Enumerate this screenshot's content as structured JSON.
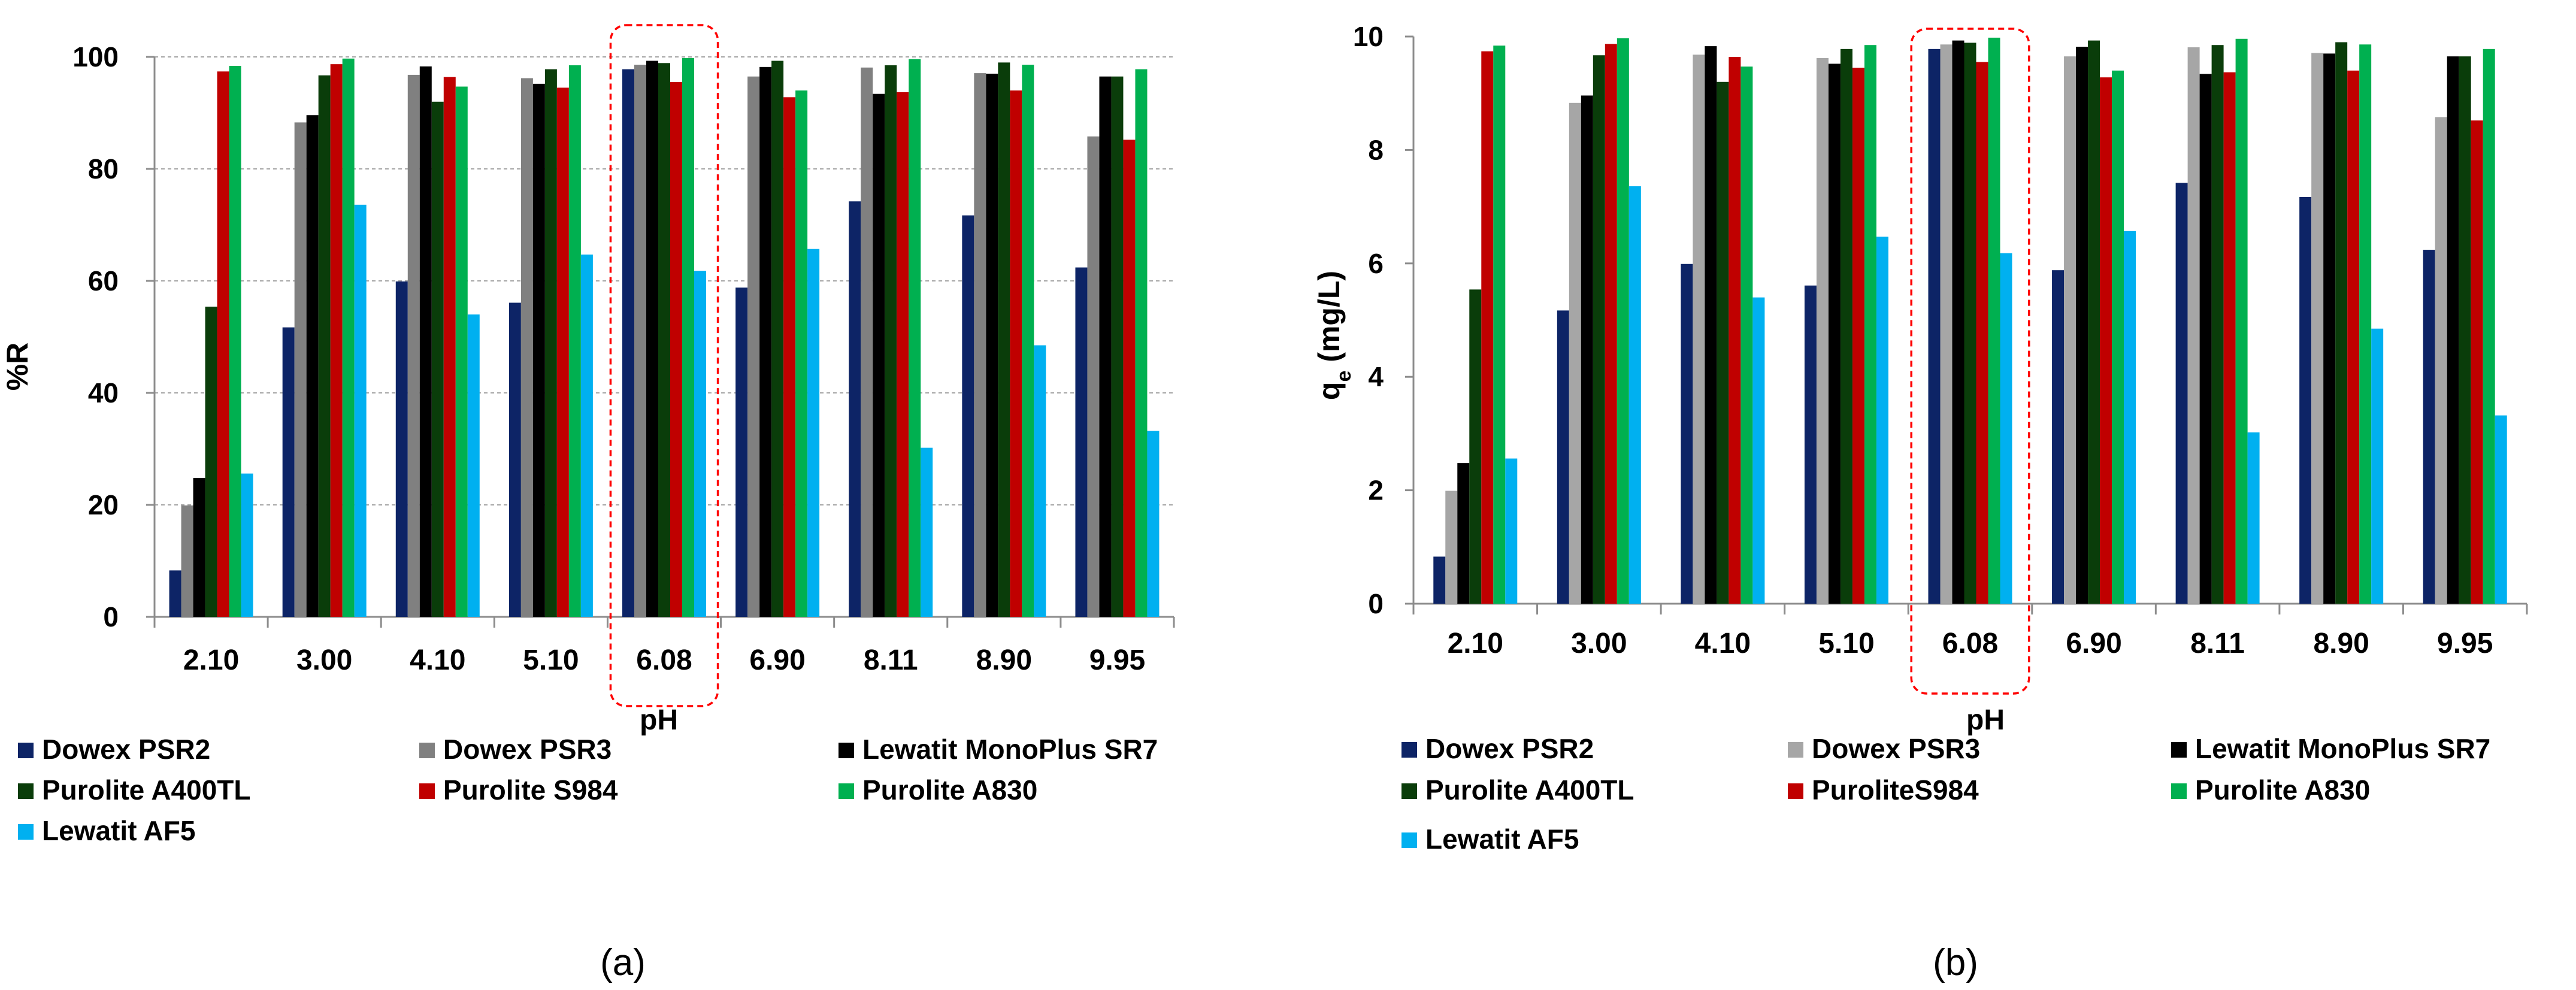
{
  "chart_data": [
    {
      "type": "bar",
      "panel_label": "(a)",
      "title": "",
      "xlabel": "pH",
      "ylabel": "%R",
      "ylim": [
        0,
        100
      ],
      "yticks": [
        0,
        20,
        40,
        60,
        80,
        100
      ],
      "grid": "horizontal dashed",
      "categories": [
        "2.10",
        "3.00",
        "4.10",
        "5.10",
        "6.08",
        "6.90",
        "8.11",
        "8.90",
        "9.95"
      ],
      "highlighted_category": "6.08",
      "series": [
        {
          "name": "Dowex PSR2",
          "color": "#0d2466",
          "values": [
            8.3,
            51.7,
            59.9,
            56.1,
            97.8,
            58.8,
            74.2,
            71.7,
            62.4
          ]
        },
        {
          "name": "Dowex PSR3",
          "color": "#808080",
          "values": [
            19.9,
            88.3,
            96.8,
            96.2,
            98.6,
            96.5,
            98.1,
            97.1,
            85.8
          ]
        },
        {
          "name": "Lewatit MonoPlus SR7",
          "color": "#000000",
          "values": [
            24.8,
            89.6,
            98.3,
            95.2,
            99.3,
            98.2,
            93.4,
            97.0,
            96.5
          ]
        },
        {
          "name": "Purolite A400TL",
          "color": "#0a3d0a",
          "values": [
            55.4,
            96.7,
            92.0,
            97.8,
            98.9,
            99.3,
            98.5,
            99.0,
            96.5
          ]
        },
        {
          "name": "Purolite S984",
          "color": "#c00000",
          "values": [
            97.4,
            98.7,
            96.4,
            94.5,
            95.5,
            92.8,
            93.7,
            94.0,
            85.2
          ]
        },
        {
          "name": "Purolite A830",
          "color": "#00b050",
          "values": [
            98.4,
            99.7,
            94.7,
            98.5,
            99.8,
            94.0,
            99.6,
            98.6,
            97.8
          ]
        },
        {
          "name": "Lewatit AF5",
          "color": "#00b0f0",
          "values": [
            25.6,
            73.6,
            54.0,
            64.7,
            61.8,
            65.7,
            30.2,
            48.5,
            33.2
          ]
        }
      ],
      "legend": {
        "placement": "bottom",
        "entries": [
          "Dowex PSR2",
          "Dowex PSR3",
          "Lewatit MonoPlus SR7",
          "Purolite A400TL",
          "Purolite S984",
          "Purolite A830",
          "Lewatit AF5"
        ]
      }
    },
    {
      "type": "bar",
      "panel_label": "(b)",
      "title": "",
      "xlabel": "pH",
      "ylabel": "qe (mg/L)",
      "ylabel_main": "q",
      "ylabel_sub": "e",
      "ylabel_rest": " (mg/L)",
      "ylim": [
        0,
        10
      ],
      "yticks": [
        0,
        2,
        4,
        6,
        8,
        10
      ],
      "grid": "none",
      "categories": [
        "2.10",
        "3.00",
        "4.10",
        "5.10",
        "6.08",
        "6.90",
        "8.11",
        "8.90",
        "9.95"
      ],
      "highlighted_category": "6.08",
      "series": [
        {
          "name": "Dowex PSR2",
          "color": "#0d2466",
          "values": [
            0.83,
            5.17,
            5.99,
            5.61,
            9.78,
            5.88,
            7.42,
            7.17,
            6.24
          ]
        },
        {
          "name": "Dowex PSR3",
          "color": "#a6a6a6",
          "values": [
            1.99,
            8.83,
            9.68,
            9.62,
            9.86,
            9.65,
            9.81,
            9.71,
            8.58
          ]
        },
        {
          "name": "Lewatit MonoPlus SR7",
          "color": "#000000",
          "values": [
            2.48,
            8.96,
            9.83,
            9.52,
            9.93,
            9.82,
            9.34,
            9.7,
            9.65
          ]
        },
        {
          "name": "Purolite A400TL",
          "color": "#0a3d0a",
          "values": [
            5.54,
            9.67,
            9.2,
            9.78,
            9.89,
            9.93,
            9.85,
            9.9,
            9.65
          ]
        },
        {
          "name": "PuroliteS984",
          "color": "#c00000",
          "values": [
            9.74,
            9.87,
            9.64,
            9.45,
            9.55,
            9.28,
            9.37,
            9.4,
            8.52
          ]
        },
        {
          "name": "Purolite A830",
          "color": "#00b050",
          "values": [
            9.84,
            9.97,
            9.47,
            9.85,
            9.98,
            9.4,
            9.96,
            9.86,
            9.78
          ]
        },
        {
          "name": "Lewatit AF5",
          "color": "#00b0f0",
          "values": [
            2.56,
            7.36,
            5.4,
            6.47,
            6.18,
            6.57,
            3.02,
            4.85,
            3.32
          ]
        }
      ],
      "legend": {
        "placement": "bottom",
        "entries": [
          "Dowex PSR2",
          "Dowex PSR3",
          "Lewatit MonoPlus SR7",
          "Purolite A400TL",
          "PuroliteS984",
          "Purolite A830",
          "Lewatit AF5"
        ]
      }
    }
  ]
}
